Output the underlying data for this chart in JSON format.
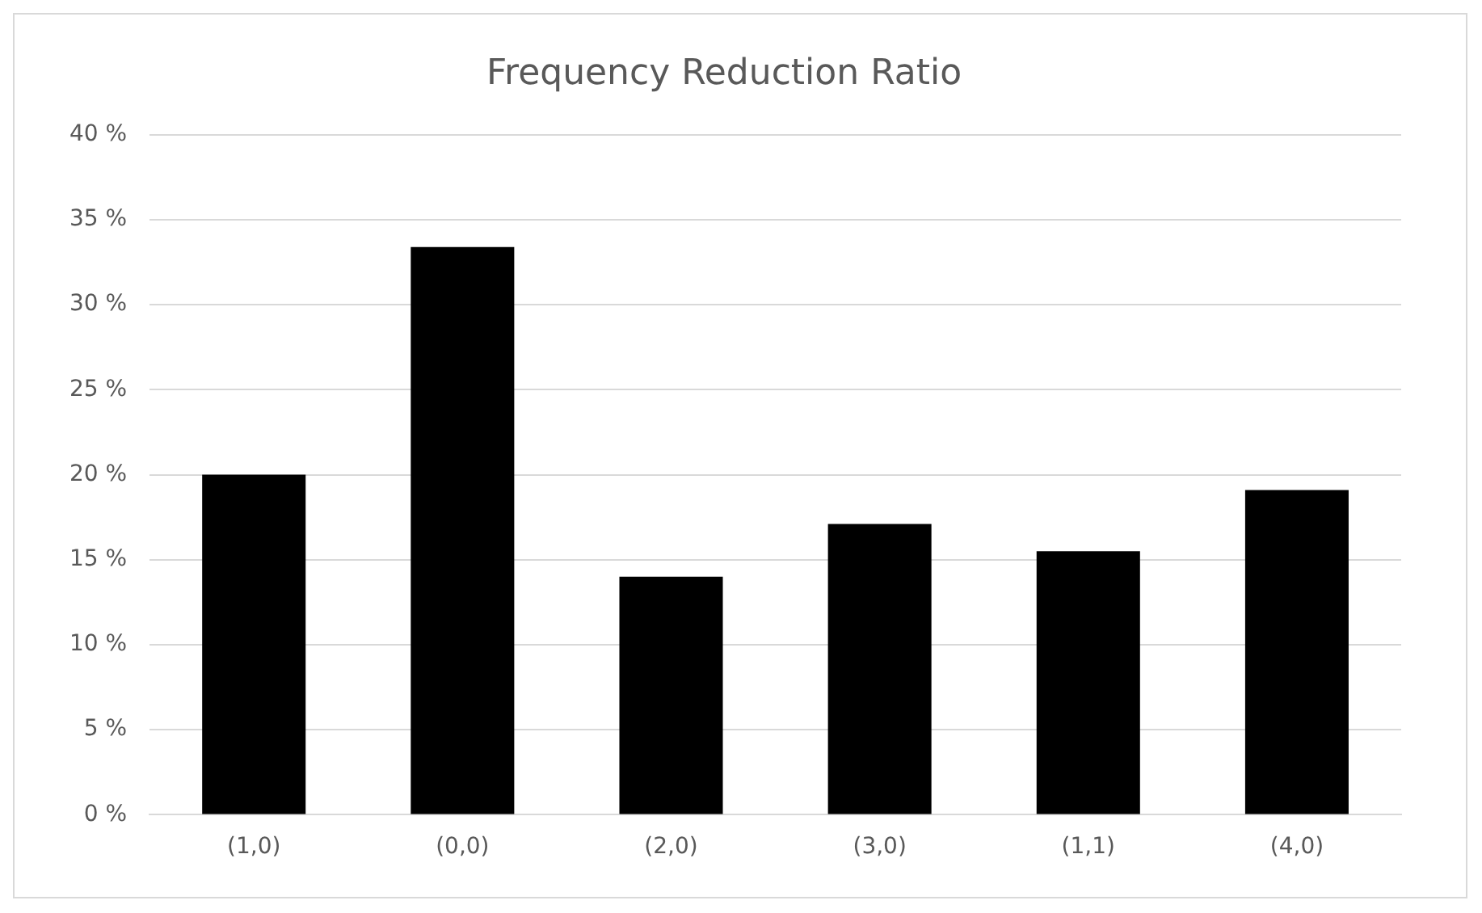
{
  "chart_data": {
    "type": "bar",
    "title": "Frequency Reduction Ratio",
    "categories": [
      "(1,0)",
      "(0,0)",
      "(2,0)",
      "(3,0)",
      "(1,1)",
      "(4,0)"
    ],
    "values": [
      20.0,
      33.4,
      14.0,
      17.1,
      15.5,
      19.1
    ],
    "color": "#000000",
    "ylim": [
      0,
      40
    ],
    "yticks": [
      {
        "value": 0,
        "label": "0 %"
      },
      {
        "value": 5,
        "label": "5 %"
      },
      {
        "value": 10,
        "label": "10 %"
      },
      {
        "value": 15,
        "label": "15 %"
      },
      {
        "value": 20,
        "label": "20 %"
      },
      {
        "value": 25,
        "label": "25 %"
      },
      {
        "value": 30,
        "label": "30 %"
      },
      {
        "value": 35,
        "label": "35 %"
      },
      {
        "value": 40,
        "label": "40 %"
      }
    ],
    "grid": "y"
  }
}
